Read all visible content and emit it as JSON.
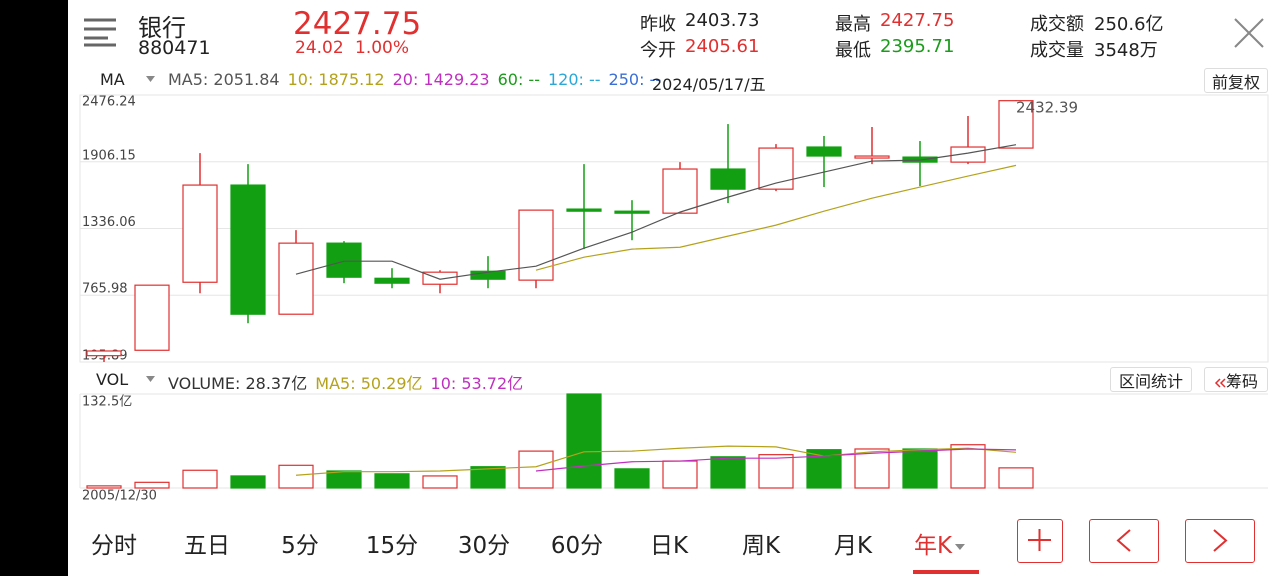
{
  "header": {
    "name": "银行",
    "code": "880471",
    "price": "2427.75",
    "change": "24.02",
    "change_pct": "1.00%",
    "stats": [
      {
        "label": "昨收",
        "value": "2403.73",
        "color": "#222"
      },
      {
        "label": "今开",
        "value": "2405.61",
        "color": "#e03030"
      },
      {
        "label": "最高",
        "value": "2427.75",
        "color": "#e03030"
      },
      {
        "label": "最低",
        "value": "2395.71",
        "color": "#1a9c1a"
      },
      {
        "label": "成交额",
        "value": "250.6亿",
        "color": "#222"
      },
      {
        "label": "成交量",
        "value": "3548万",
        "color": "#222"
      }
    ]
  },
  "toolbar": {
    "ma_selector": "MA",
    "date": "2024/05/17/五",
    "adjust_button": "前复权",
    "vol_selector": "VOL",
    "range_stats_button": "区间统计",
    "chips_button": "筹码"
  },
  "chart_data": [
    {
      "type": "candlestick",
      "categories": [
        null,
        null,
        null,
        null,
        null,
        null,
        null,
        null,
        null,
        null,
        null,
        null,
        null,
        null,
        null,
        null,
        null,
        null,
        null,
        null
      ],
      "open": [
        250,
        296,
        877,
        1707,
        604,
        1211,
        911,
        860,
        971,
        895,
        1502,
        1484,
        1467,
        1844,
        1672,
        2032,
        1938,
        1946,
        1903,
        2023
      ],
      "close": [
        290,
        852,
        1707,
        604,
        1211,
        920,
        869,
        963,
        903,
        1493,
        1484,
        1467,
        1844,
        1672,
        2023,
        1955,
        1955,
        1903,
        2032,
        2427.75
      ],
      "high": [
        296,
        852,
        1980,
        1886,
        1322,
        1228,
        997,
        980,
        1100,
        1493,
        1886,
        1578,
        1903,
        2228,
        2057,
        2126,
        2203,
        2083,
        2297,
        2432.39
      ],
      "low": [
        195.89,
        296,
        783,
        527,
        604,
        869,
        826,
        783,
        826,
        826,
        1160,
        1236,
        1467,
        1553,
        1655,
        1690,
        1886,
        1698,
        1886,
        2023
      ],
      "up_color": "#e03030",
      "down_color": "#12a012",
      "series": [
        {
          "name": "MA5: 2051.84",
          "color": "#555555",
          "values": [
            null,
            null,
            null,
            null,
            946,
            1057,
            1057,
            903,
            963,
            1014,
            1168,
            1305,
            1476,
            1604,
            1724,
            1818,
            1912,
            1920,
            1980,
            2051.84
          ]
        },
        {
          "name": "10: 1875.12",
          "color": "#b5a21c",
          "values": [
            null,
            null,
            null,
            null,
            null,
            null,
            null,
            null,
            null,
            980,
            1091,
            1160,
            1176,
            1271,
            1365,
            1484,
            1595,
            1690,
            1784,
            1875.12
          ]
        }
      ],
      "legend_extra": [
        {
          "text": "20: 1429.23",
          "color": "#c030c0"
        },
        {
          "text": "60: --",
          "color": "#1a9c1a"
        },
        {
          "text": "120: --",
          "color": "#2aa8d8"
        },
        {
          "text": "250: --",
          "color": "#3a6fd8"
        }
      ],
      "annotation": "2432.39",
      "ylim": [
        195.89,
        2476.24
      ],
      "yticks": [
        195.89,
        765.98,
        1336.06,
        1906.15,
        2476.24
      ],
      "grid": true
    },
    {
      "type": "bar",
      "name": "VOLUME: 28.37亿",
      "values": [
        3,
        8,
        25,
        17,
        32,
        24,
        20,
        17,
        30,
        52,
        132.5,
        27,
        38,
        44,
        47,
        54,
        55,
        55,
        61,
        28.37
      ],
      "series": [
        {
          "name": "MA5: 50.29亿",
          "color": "#b5a21c",
          "values": [
            null,
            null,
            null,
            null,
            18,
            23,
            23,
            24,
            27,
            30,
            51,
            52,
            56,
            59,
            58,
            45,
            51,
            54,
            56,
            50.29
          ]
        },
        {
          "name": "10: 53.72亿",
          "color": "#c030c0",
          "values": [
            null,
            null,
            null,
            null,
            null,
            null,
            null,
            null,
            null,
            24,
            31,
            37,
            38,
            42,
            42,
            45,
            49,
            52,
            55,
            53.72
          ]
        }
      ],
      "ylim": [
        0,
        132.5
      ],
      "yticks": [
        {
          "value": 132.5,
          "label": "132.5亿"
        }
      ],
      "start_date": "2005/12/30"
    }
  ],
  "tabs": [
    "分时",
    "五日",
    "5分",
    "15分",
    "30分",
    "60分",
    "日K",
    "周K",
    "月K",
    "年K"
  ],
  "active_tab": 9
}
